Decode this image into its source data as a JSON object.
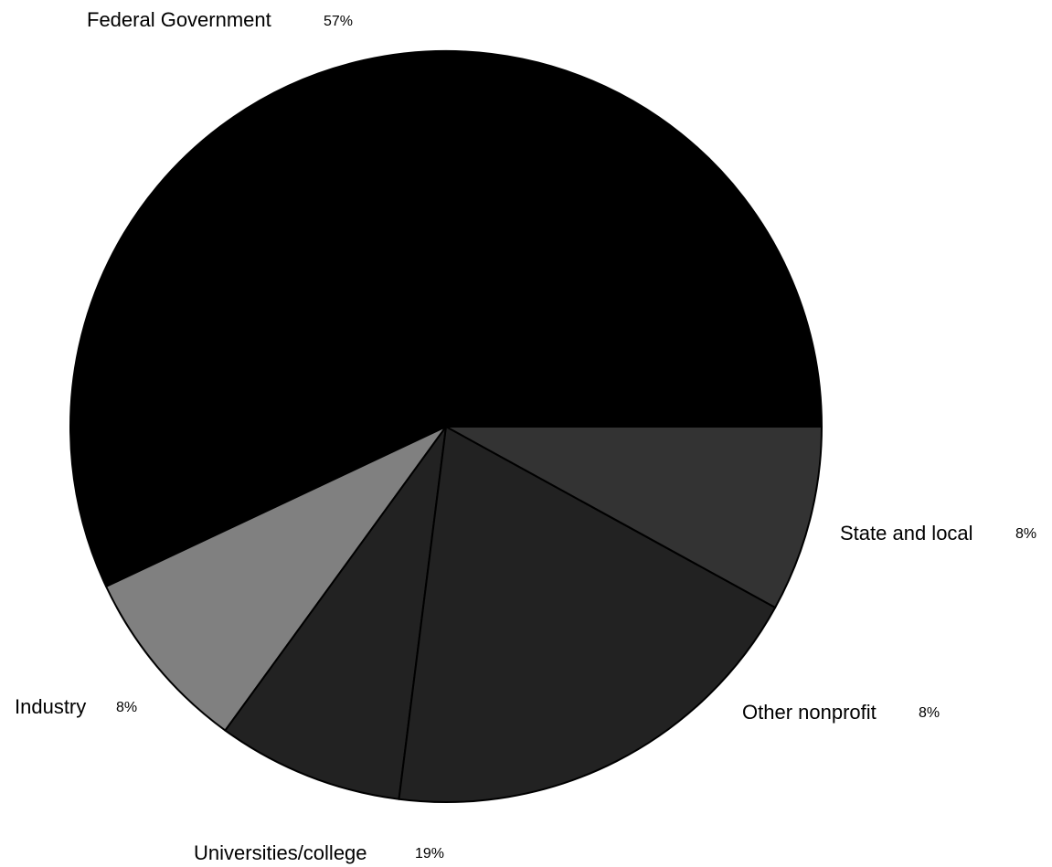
{
  "chart_data": {
    "type": "pie",
    "slices": [
      {
        "label": "Federal Government",
        "value": 57,
        "display": "57%",
        "color": "#000000"
      },
      {
        "label": "State and local",
        "value": 8,
        "display": "8%",
        "color": "#808080"
      },
      {
        "label": "Other nonprofit",
        "value": 8,
        "display": "8%",
        "color": "#222222"
      },
      {
        "label": "Universities/college",
        "value": 19,
        "display": "19%",
        "color": "#222222"
      },
      {
        "label": "Industry",
        "value": 8,
        "display": "8%",
        "color": "#333333"
      }
    ]
  }
}
